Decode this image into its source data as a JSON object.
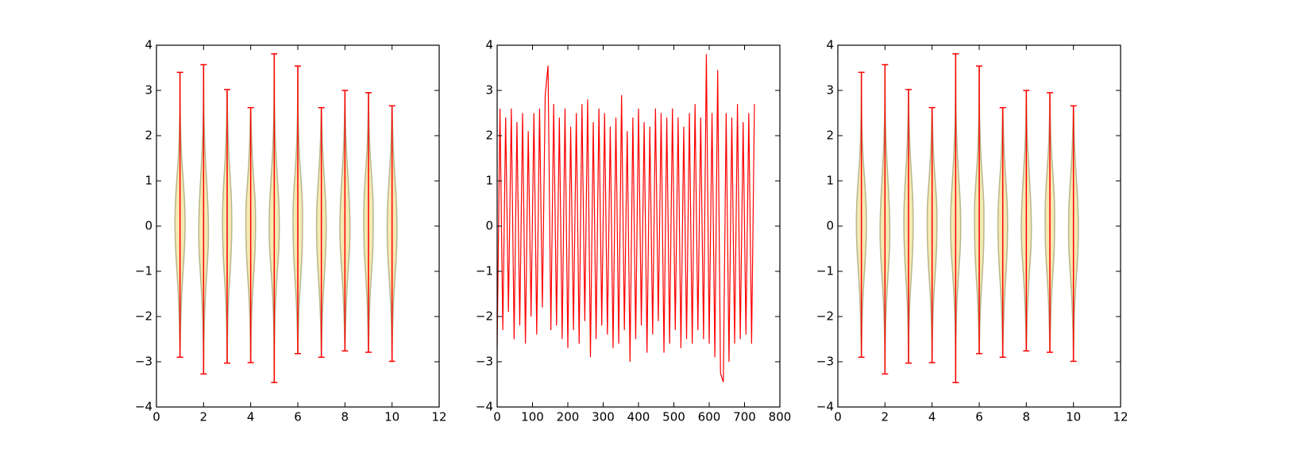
{
  "chart_data": [
    {
      "type": "violin",
      "positions": [
        1,
        2,
        3,
        4,
        5,
        6,
        7,
        8,
        9,
        10
      ],
      "mins": [
        -2.9,
        -3.27,
        -3.03,
        -3.02,
        -3.46,
        -2.82,
        -2.9,
        -2.76,
        -2.79,
        -2.99
      ],
      "maxs": [
        3.4,
        3.57,
        3.02,
        2.62,
        3.81,
        3.54,
        2.62,
        3.0,
        2.95,
        2.66
      ],
      "density_levels": [
        -3,
        -2.5,
        -2,
        -1.5,
        -1,
        -0.5,
        0,
        0.5,
        1,
        1.5,
        2,
        2.5,
        3
      ],
      "densities": [
        [
          0.004,
          0.012,
          0.035,
          0.07,
          0.13,
          0.19,
          0.22,
          0.2,
          0.14,
          0.07,
          0.03,
          0.01,
          0.004
        ],
        [
          0.004,
          0.014,
          0.038,
          0.08,
          0.14,
          0.2,
          0.21,
          0.18,
          0.13,
          0.075,
          0.035,
          0.012,
          0.004
        ],
        [
          0.004,
          0.012,
          0.03,
          0.07,
          0.13,
          0.18,
          0.2,
          0.19,
          0.14,
          0.08,
          0.04,
          0.012,
          0.004
        ],
        [
          0.004,
          0.013,
          0.035,
          0.075,
          0.14,
          0.19,
          0.21,
          0.2,
          0.13,
          0.07,
          0.03,
          0.01,
          0.004
        ],
        [
          0.004,
          0.012,
          0.03,
          0.07,
          0.13,
          0.2,
          0.22,
          0.2,
          0.14,
          0.08,
          0.04,
          0.015,
          0.005
        ],
        [
          0.004,
          0.012,
          0.035,
          0.08,
          0.14,
          0.19,
          0.2,
          0.2,
          0.14,
          0.075,
          0.035,
          0.012,
          0.004
        ],
        [
          0.004,
          0.013,
          0.04,
          0.08,
          0.14,
          0.19,
          0.21,
          0.19,
          0.13,
          0.07,
          0.03,
          0.01,
          0.004
        ],
        [
          0.004,
          0.012,
          0.035,
          0.075,
          0.13,
          0.2,
          0.22,
          0.19,
          0.14,
          0.08,
          0.035,
          0.012,
          0.004
        ],
        [
          0.004,
          0.012,
          0.035,
          0.07,
          0.13,
          0.19,
          0.2,
          0.2,
          0.15,
          0.08,
          0.035,
          0.012,
          0.004
        ],
        [
          0.004,
          0.012,
          0.035,
          0.075,
          0.14,
          0.2,
          0.21,
          0.19,
          0.13,
          0.07,
          0.03,
          0.01,
          0.004
        ]
      ],
      "color": "#f3e6a4",
      "edge_color": "#b8b58c",
      "extrema_color": "#ff0000",
      "xlim": [
        0,
        12
      ],
      "ylim": [
        -4,
        4
      ],
      "xticks": [
        0,
        2,
        4,
        6,
        8,
        10,
        12
      ],
      "yticks": [
        {
          "value": -4,
          "label": "−4"
        },
        {
          "value": -3,
          "label": "−3"
        },
        {
          "value": -2,
          "label": "−2"
        },
        {
          "value": -1,
          "label": "−1"
        },
        0,
        1,
        2,
        3,
        4
      ]
    },
    {
      "type": "line",
      "x": [
        0,
        8,
        16,
        24,
        32,
        40,
        48,
        56,
        64,
        72,
        80,
        88,
        96,
        104,
        112,
        120,
        128,
        136,
        144,
        152,
        160,
        168,
        176,
        184,
        192,
        200,
        208,
        216,
        224,
        232,
        240,
        248,
        256,
        264,
        272,
        280,
        288,
        296,
        304,
        312,
        320,
        328,
        336,
        344,
        352,
        360,
        368,
        376,
        384,
        392,
        400,
        408,
        416,
        424,
        432,
        440,
        448,
        456,
        464,
        472,
        480,
        488,
        496,
        504,
        512,
        520,
        528,
        536,
        544,
        552,
        560,
        568,
        576,
        584,
        592,
        600,
        608,
        616,
        624,
        632,
        640,
        648,
        656,
        664,
        672,
        680,
        688,
        696,
        704,
        712,
        720,
        728
      ],
      "values": [
        -2.7,
        2.6,
        -2.3,
        2.4,
        -1.9,
        2.6,
        -2.5,
        2.3,
        -2.2,
        2.5,
        -2.6,
        2.1,
        -2.0,
        2.5,
        -2.4,
        2.6,
        -1.8,
        2.9,
        3.55,
        -2.3,
        2.7,
        -2.2,
        2.4,
        -2.5,
        2.6,
        -2.7,
        2.2,
        -2.3,
        2.5,
        -2.6,
        2.7,
        -2.1,
        2.8,
        -2.9,
        2.3,
        -2.5,
        2.6,
        -2.2,
        2.5,
        -2.4,
        2.2,
        -2.7,
        2.4,
        -2.6,
        2.9,
        -2.3,
        2.1,
        -3.0,
        2.4,
        -2.5,
        2.6,
        -2.2,
        2.3,
        -2.8,
        2.2,
        -2.4,
        2.6,
        -2.1,
        2.5,
        -2.8,
        2.4,
        -2.6,
        2.6,
        -2.3,
        2.4,
        -2.7,
        2.2,
        -2.5,
        2.5,
        -2.6,
        2.7,
        -2.3,
        2.4,
        -2.5,
        3.8,
        -2.6,
        2.5,
        -2.9,
        3.45,
        -3.25,
        -3.45,
        2.5,
        -3.0,
        2.4,
        -2.6,
        2.7,
        -2.5,
        2.3,
        -2.4,
        2.5,
        -2.6,
        2.7
      ],
      "color": "#ff0000",
      "xlim": [
        0,
        800
      ],
      "ylim": [
        -4,
        4
      ],
      "xticks": [
        0,
        100,
        200,
        300,
        400,
        500,
        600,
        700,
        800
      ],
      "yticks": [
        {
          "value": -4,
          "label": "−4"
        },
        {
          "value": -3,
          "label": "−3"
        },
        {
          "value": -2,
          "label": "−2"
        },
        {
          "value": -1,
          "label": "−1"
        },
        0,
        1,
        2,
        3,
        4
      ]
    },
    {
      "type": "violin",
      "positions": [
        1,
        2,
        3,
        4,
        5,
        6,
        7,
        8,
        9,
        10
      ],
      "mins": [
        -2.9,
        -3.27,
        -3.03,
        -3.02,
        -3.46,
        -2.82,
        -2.9,
        -2.76,
        -2.79,
        -2.99
      ],
      "maxs": [
        3.4,
        3.57,
        3.02,
        2.62,
        3.81,
        3.54,
        2.62,
        3.0,
        2.95,
        2.66
      ],
      "density_levels": [
        -3,
        -2.5,
        -2,
        -1.5,
        -1,
        -0.5,
        0,
        0.5,
        1,
        1.5,
        2,
        2.5,
        3
      ],
      "densities": [
        [
          0.004,
          0.012,
          0.035,
          0.07,
          0.13,
          0.19,
          0.22,
          0.2,
          0.14,
          0.07,
          0.03,
          0.01,
          0.004
        ],
        [
          0.004,
          0.014,
          0.038,
          0.08,
          0.14,
          0.2,
          0.21,
          0.18,
          0.13,
          0.075,
          0.035,
          0.012,
          0.004
        ],
        [
          0.004,
          0.012,
          0.03,
          0.07,
          0.13,
          0.18,
          0.2,
          0.19,
          0.14,
          0.08,
          0.04,
          0.012,
          0.004
        ],
        [
          0.004,
          0.013,
          0.035,
          0.075,
          0.14,
          0.19,
          0.21,
          0.2,
          0.13,
          0.07,
          0.03,
          0.01,
          0.004
        ],
        [
          0.004,
          0.012,
          0.03,
          0.07,
          0.13,
          0.2,
          0.22,
          0.2,
          0.14,
          0.08,
          0.04,
          0.015,
          0.005
        ],
        [
          0.004,
          0.012,
          0.035,
          0.08,
          0.14,
          0.19,
          0.2,
          0.2,
          0.14,
          0.075,
          0.035,
          0.012,
          0.004
        ],
        [
          0.004,
          0.013,
          0.04,
          0.08,
          0.14,
          0.19,
          0.21,
          0.19,
          0.13,
          0.07,
          0.03,
          0.01,
          0.004
        ],
        [
          0.004,
          0.012,
          0.035,
          0.075,
          0.13,
          0.2,
          0.22,
          0.19,
          0.14,
          0.08,
          0.035,
          0.012,
          0.004
        ],
        [
          0.004,
          0.012,
          0.035,
          0.07,
          0.13,
          0.19,
          0.2,
          0.2,
          0.15,
          0.08,
          0.035,
          0.012,
          0.004
        ],
        [
          0.004,
          0.012,
          0.035,
          0.075,
          0.14,
          0.2,
          0.21,
          0.19,
          0.13,
          0.07,
          0.03,
          0.01,
          0.004
        ]
      ],
      "color": "#f3e6a4",
      "edge_color": "#b8b58c",
      "extrema_color": "#ff0000",
      "xlim": [
        0,
        12
      ],
      "ylim": [
        -4,
        4
      ],
      "xticks": [
        0,
        2,
        4,
        6,
        8,
        10,
        12
      ],
      "yticks": [
        {
          "value": -4,
          "label": "−4"
        },
        {
          "value": -3,
          "label": "−3"
        },
        {
          "value": -2,
          "label": "−2"
        },
        {
          "value": -1,
          "label": "−1"
        },
        0,
        1,
        2,
        3,
        4
      ]
    }
  ]
}
